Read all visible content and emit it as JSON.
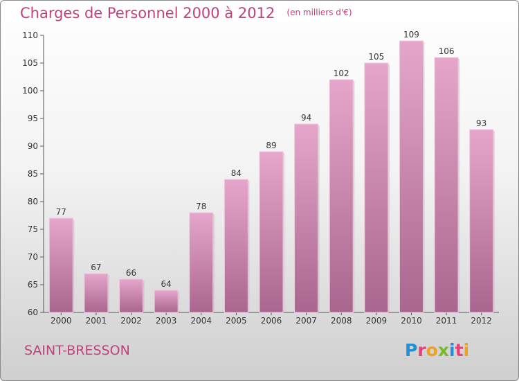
{
  "chart_data": {
    "type": "bar",
    "title": "Charges de Personnel 2000 à 2012",
    "subtitle": "(en milliers d'€)",
    "categories": [
      "2000",
      "2001",
      "2002",
      "2003",
      "2004",
      "2005",
      "2006",
      "2007",
      "2008",
      "2009",
      "2010",
      "2011",
      "2012"
    ],
    "values": [
      77,
      67,
      66,
      64,
      78,
      84,
      89,
      94,
      102,
      105,
      109,
      106,
      93
    ],
    "ylim": [
      60,
      110
    ],
    "yticks": [
      60,
      65,
      70,
      75,
      80,
      85,
      90,
      95,
      100,
      105,
      110
    ],
    "grid": false,
    "bar_color": "#d98cb8"
  },
  "commune": "SAINT-BRESSON",
  "brand": {
    "name": "Proxiti",
    "letters": [
      {
        "ch": "P",
        "color": "#1f8fd6"
      },
      {
        "ch": "r",
        "color": "#e8417a"
      },
      {
        "ch": "o",
        "color": "#f0a01c"
      },
      {
        "ch": "x",
        "color": "#7ab82e"
      },
      {
        "ch": "i",
        "color": "#1f8fd6"
      },
      {
        "ch": "t",
        "color": "#e8417a"
      },
      {
        "ch": "i",
        "color": "#f0a01c"
      }
    ]
  },
  "colors": {
    "title": "#c2407e",
    "axis": "#555555"
  }
}
